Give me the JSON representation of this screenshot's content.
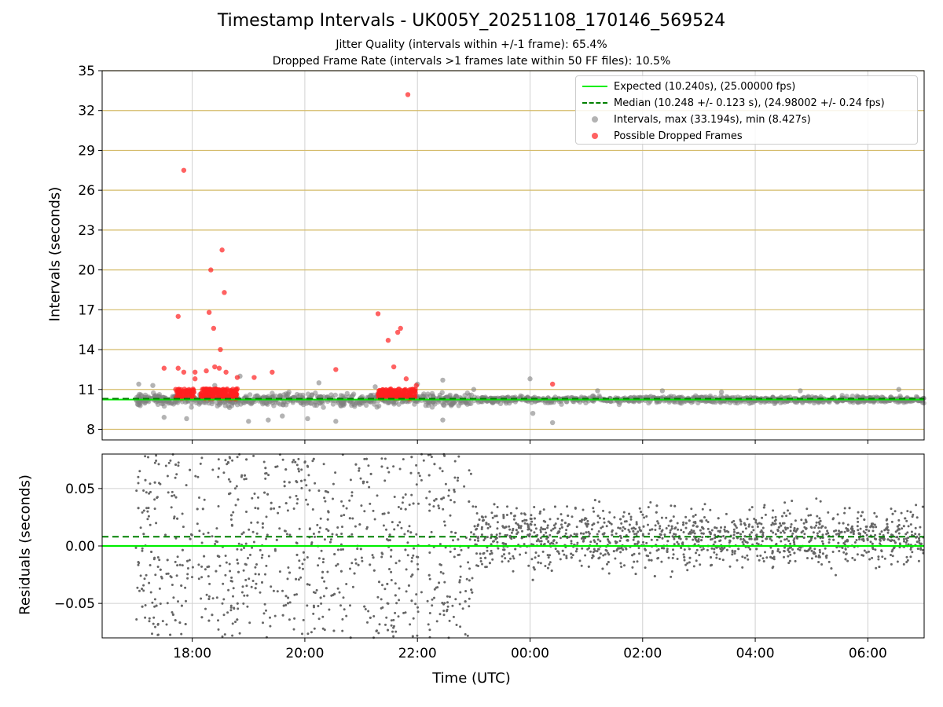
{
  "title": "Timestamp Intervals - UK005Y_20251108_170146_569524",
  "subtitle_1": "Jitter Quality (intervals within +/-1 frame): 65.4%",
  "subtitle_2": "Dropped Frame Rate (intervals >1 frames late within 50 FF files): 10.5%",
  "colors": {
    "expected": "#00ee00",
    "median": "#008000",
    "intervals": "#808080",
    "dropped": "#ff2020",
    "gold_grid": "#d4bb6a",
    "grid": "#d0d0d0"
  },
  "chart_data": [
    {
      "type": "scatter",
      "panel": "top",
      "ylabel": "Intervals (seconds)",
      "ylim": [
        7.2,
        35
      ],
      "yticks": [
        "8",
        "11",
        "14",
        "17",
        "20",
        "23",
        "26",
        "29",
        "32",
        "35"
      ],
      "grid": "horizontal gold lines at y ticks, vertical grey lines at x ticks",
      "legend_position": "top-right",
      "legend": [
        "Expected (10.240s), (25.00000 fps)",
        "Median (10.248 +/- 0.123 s), (24.98002 +/- 0.24 fps)",
        "Intervals, max (33.194s), min (8.427s)",
        "Possible Dropped Frames"
      ],
      "expected_line": 10.24,
      "median_line": 10.248,
      "series": [
        {
          "name": "Intervals",
          "description": "Dense grey cloud around 10.2 s from ~17:00 to 07:00 UTC; spread wider (~8.5-12) before 23:00, tighter (~9.8-11) after",
          "points": [
            [
              17.05,
              11.4
            ],
            [
              17.3,
              11.3
            ],
            [
              17.5,
              8.9
            ],
            [
              17.9,
              8.8
            ],
            [
              18.4,
              11.3
            ],
            [
              18.85,
              12.0
            ],
            [
              19.0,
              8.6
            ],
            [
              19.35,
              8.7
            ],
            [
              19.6,
              9.0
            ],
            [
              20.05,
              8.8
            ],
            [
              20.25,
              11.5
            ],
            [
              20.55,
              8.6
            ],
            [
              21.25,
              11.2
            ],
            [
              22.0,
              11.4
            ],
            [
              22.45,
              11.7
            ],
            [
              22.45,
              8.7
            ],
            [
              23.0,
              11.0
            ],
            [
              24.0,
              11.8
            ],
            [
              24.4,
              8.5
            ],
            [
              24.05,
              9.2
            ],
            [
              25.2,
              10.9
            ],
            [
              26.35,
              10.9
            ],
            [
              27.4,
              10.8
            ],
            [
              28.8,
              10.9
            ],
            [
              30.55,
              11.0
            ]
          ]
        },
        {
          "name": "Possible Dropped Frames",
          "points": [
            [
              17.75,
              16.5
            ],
            [
              17.85,
              27.5
            ],
            [
              17.5,
              12.6
            ],
            [
              17.75,
              12.6
            ],
            [
              17.85,
              12.3
            ],
            [
              18.05,
              12.3
            ],
            [
              18.05,
              11.8
            ],
            [
              18.25,
              12.4
            ],
            [
              18.3,
              16.8
            ],
            [
              18.33,
              20.0
            ],
            [
              18.38,
              15.6
            ],
            [
              18.4,
              12.7
            ],
            [
              18.48,
              12.6
            ],
            [
              18.5,
              14.0
            ],
            [
              18.53,
              21.5
            ],
            [
              18.57,
              18.3
            ],
            [
              18.6,
              12.3
            ],
            [
              18.8,
              11.9
            ],
            [
              19.1,
              11.9
            ],
            [
              19.42,
              12.3
            ],
            [
              20.55,
              12.5
            ],
            [
              21.3,
              16.7
            ],
            [
              21.48,
              14.7
            ],
            [
              21.58,
              12.7
            ],
            [
              21.65,
              15.3
            ],
            [
              21.7,
              15.6
            ],
            [
              21.83,
              33.2
            ],
            [
              21.8,
              11.8
            ],
            [
              21.98,
              11.3
            ],
            [
              24.4,
              11.4
            ]
          ]
        }
      ]
    },
    {
      "type": "scatter",
      "panel": "bottom",
      "ylabel": "Residuals (seconds)",
      "xlabel": "Time (UTC)",
      "ylim": [
        -0.08,
        0.08
      ],
      "yticks": [
        "−0.05",
        "0.00",
        "0.05"
      ],
      "xticks": [
        "18:00",
        "20:00",
        "22:00",
        "00:00",
        "02:00",
        "04:00",
        "06:00"
      ],
      "expected_line": 0.0,
      "median_line": 0.008,
      "series": [
        {
          "name": "Residuals",
          "description": "Grey dots clipped to +/-0.08 s; wide scatter before 23:00, denser band (-0.03 to 0.04) after 23:00"
        }
      ]
    }
  ]
}
